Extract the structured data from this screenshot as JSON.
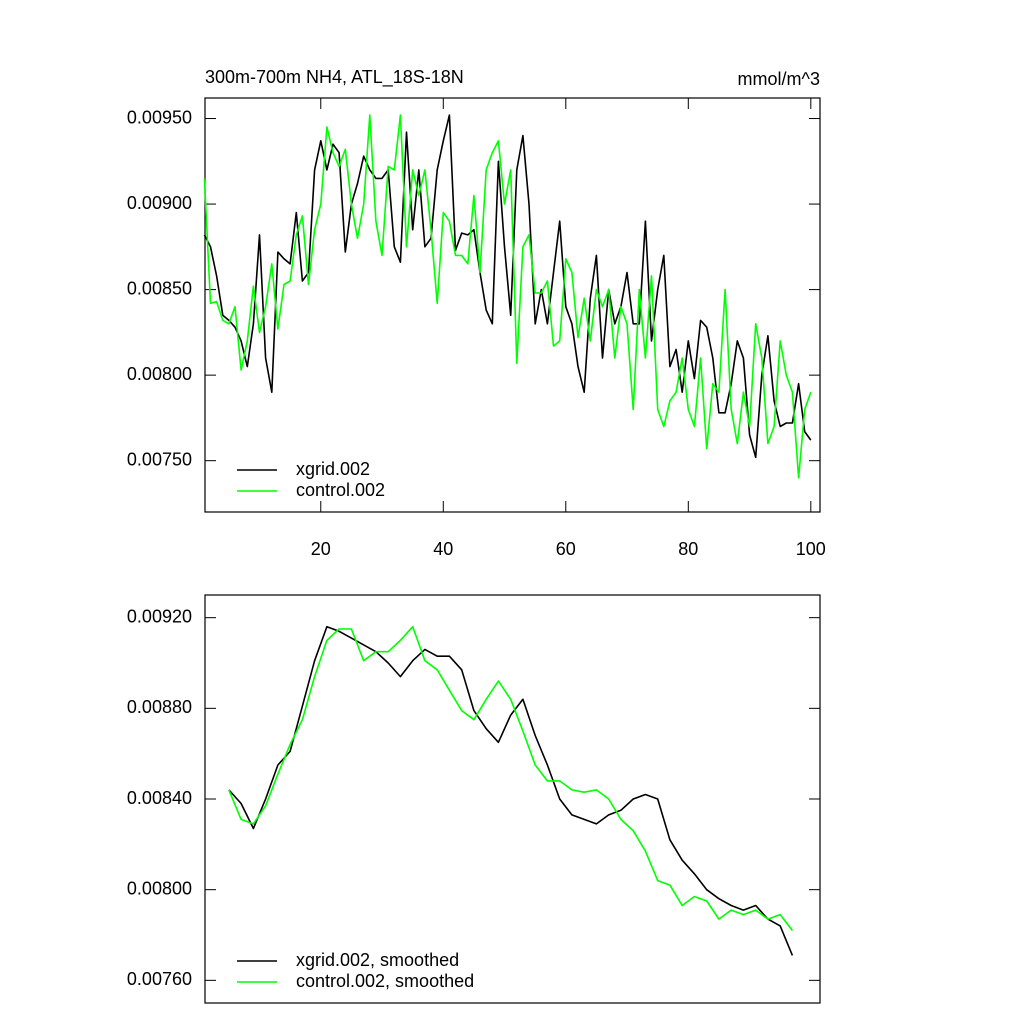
{
  "chart_data": [
    {
      "type": "line",
      "title": "300m-700m NH4, ATL_18S-18N",
      "units": "mmol/m^3",
      "x": [
        1,
        2,
        3,
        4,
        5,
        6,
        7,
        8,
        9,
        10,
        11,
        12,
        13,
        14,
        15,
        16,
        17,
        18,
        19,
        20,
        21,
        22,
        23,
        24,
        25,
        26,
        27,
        28,
        29,
        30,
        31,
        32,
        33,
        34,
        35,
        36,
        37,
        38,
        39,
        40,
        41,
        42,
        43,
        44,
        45,
        46,
        47,
        48,
        49,
        50,
        51,
        52,
        53,
        54,
        55,
        56,
        57,
        58,
        59,
        60,
        61,
        62,
        63,
        64,
        65,
        66,
        67,
        68,
        69,
        70,
        71,
        72,
        73,
        74,
        75,
        76,
        77,
        78,
        79,
        80,
        81,
        82,
        83,
        84,
        85,
        86,
        87,
        88,
        89,
        90,
        91,
        92,
        93,
        94,
        95,
        96,
        97,
        98,
        99,
        100
      ],
      "series": [
        {
          "name": "xgrid.002",
          "color": "#000000",
          "values": [
            0.00882,
            0.00875,
            0.00858,
            0.00835,
            0.00832,
            0.00828,
            0.0082,
            0.00805,
            0.0083,
            0.00882,
            0.0081,
            0.0079,
            0.00872,
            0.00868,
            0.00865,
            0.00895,
            0.00855,
            0.0086,
            0.0092,
            0.00937,
            0.0092,
            0.00935,
            0.0093,
            0.00872,
            0.009,
            0.00912,
            0.00928,
            0.0092,
            0.00915,
            0.00915,
            0.0092,
            0.00875,
            0.00866,
            0.00942,
            0.00885,
            0.0092,
            0.00875,
            0.0088,
            0.0092,
            0.00937,
            0.00952,
            0.00873,
            0.00883,
            0.00882,
            0.00885,
            0.0086,
            0.00838,
            0.0083,
            0.00925,
            0.00875,
            0.00835,
            0.0092,
            0.0094,
            0.009,
            0.0083,
            0.0085,
            0.0083,
            0.0086,
            0.0089,
            0.0084,
            0.0083,
            0.00805,
            0.0079,
            0.00845,
            0.0087,
            0.0081,
            0.0085,
            0.0083,
            0.0084,
            0.0086,
            0.0083,
            0.0083,
            0.0089,
            0.0082,
            0.0085,
            0.0087,
            0.00805,
            0.00815,
            0.0079,
            0.0082,
            0.00798,
            0.00832,
            0.00828,
            0.0081,
            0.00778,
            0.00778,
            0.00795,
            0.0082,
            0.0081,
            0.00765,
            0.00752,
            0.008,
            0.00823,
            0.00785,
            0.0077,
            0.00772,
            0.00772,
            0.00795,
            0.00767,
            0.00762
          ]
        },
        {
          "name": "control.002",
          "color": "#00ff00",
          "values": [
            0.00915,
            0.00842,
            0.00843,
            0.00832,
            0.0083,
            0.0084,
            0.00803,
            0.0082,
            0.00852,
            0.00825,
            0.0084,
            0.00865,
            0.00827,
            0.00853,
            0.00855,
            0.00882,
            0.00893,
            0.00853,
            0.00885,
            0.009,
            0.00945,
            0.0093,
            0.00922,
            0.00932,
            0.009,
            0.0088,
            0.009,
            0.00952,
            0.0089,
            0.0087,
            0.00922,
            0.0092,
            0.00952,
            0.00875,
            0.0092,
            0.00905,
            0.0092,
            0.00885,
            0.00842,
            0.00895,
            0.0089,
            0.0087,
            0.0087,
            0.00865,
            0.00905,
            0.0086,
            0.0092,
            0.0093,
            0.00937,
            0.009,
            0.0092,
            0.00807,
            0.00875,
            0.00882,
            0.00848,
            0.00848,
            0.00855,
            0.00817,
            0.0082,
            0.00868,
            0.0086,
            0.00822,
            0.00845,
            0.0082,
            0.0085,
            0.0084,
            0.0085,
            0.0081,
            0.0084,
            0.0083,
            0.0078,
            0.0085,
            0.0081,
            0.00858,
            0.0078,
            0.0077,
            0.00785,
            0.0079,
            0.0081,
            0.0078,
            0.0077,
            0.0081,
            0.00757,
            0.00795,
            0.0079,
            0.0085,
            0.0078,
            0.0076,
            0.0079,
            0.0077,
            0.0083,
            0.0081,
            0.0076,
            0.0077,
            0.0082,
            0.008,
            0.0079,
            0.0074,
            0.0078,
            0.0079
          ]
        }
      ],
      "xlim": [
        1.1,
        101.5
      ],
      "xticks": [
        20,
        40,
        60,
        80,
        100
      ],
      "ylim": [
        0.0072,
        0.00962
      ],
      "yticks": [
        {
          "value": 0.0075,
          "label": "0.00750"
        },
        {
          "value": 0.008,
          "label": "0.00800"
        },
        {
          "value": 0.0085,
          "label": "0.00850"
        },
        {
          "value": 0.009,
          "label": "0.00900"
        },
        {
          "value": 0.0095,
          "label": "0.00950"
        }
      ],
      "legend": "lower left"
    },
    {
      "type": "line",
      "x": [
        5,
        7,
        9,
        11,
        13,
        15,
        17,
        19,
        21,
        23,
        25,
        27,
        29,
        31,
        33,
        35,
        37,
        39,
        41,
        43,
        45,
        47,
        49,
        51,
        53,
        55,
        57,
        59,
        61,
        63,
        65,
        67,
        69,
        71,
        73,
        75,
        77,
        79,
        81,
        83,
        85,
        87,
        89,
        91,
        93,
        95,
        97
      ],
      "series": [
        {
          "name": "xgrid.002, smoothed",
          "color": "#000000",
          "values": [
            0.00844,
            0.00838,
            0.00827,
            0.0084,
            0.00855,
            0.00861,
            0.00881,
            0.00901,
            0.00916,
            0.00914,
            0.00911,
            0.00908,
            0.00905,
            0.009,
            0.00894,
            0.00901,
            0.00906,
            0.00903,
            0.00903,
            0.00897,
            0.00879,
            0.00871,
            0.00865,
            0.00877,
            0.00884,
            0.00868,
            0.00855,
            0.0084,
            0.00833,
            0.00831,
            0.00829,
            0.00833,
            0.00835,
            0.0084,
            0.00842,
            0.0084,
            0.00822,
            0.00813,
            0.00807,
            0.008,
            0.00796,
            0.00793,
            0.00791,
            0.00793,
            0.00787,
            0.00784,
            0.00771
          ]
        },
        {
          "name": "control.002, smoothed",
          "color": "#00ff00",
          "values": [
            0.00844,
            0.00831,
            0.00829,
            0.00837,
            0.00851,
            0.00864,
            0.00875,
            0.00894,
            0.0091,
            0.00915,
            0.00915,
            0.00901,
            0.00905,
            0.00905,
            0.0091,
            0.00916,
            0.00901,
            0.00897,
            0.00888,
            0.00879,
            0.00875,
            0.00884,
            0.00892,
            0.00884,
            0.0087,
            0.00855,
            0.00848,
            0.00848,
            0.00844,
            0.00843,
            0.00844,
            0.0084,
            0.00831,
            0.00826,
            0.00817,
            0.00804,
            0.00802,
            0.00793,
            0.00797,
            0.00795,
            0.00787,
            0.00791,
            0.00789,
            0.00791,
            0.00787,
            0.00789,
            0.00782
          ]
        }
      ],
      "xlim": [
        1.1,
        101.5
      ],
      "ylim": [
        0.0075,
        0.0093
      ],
      "yticks": [
        {
          "value": 0.0076,
          "label": "0.00760"
        },
        {
          "value": 0.008,
          "label": "0.00800"
        },
        {
          "value": 0.0084,
          "label": "0.00840"
        },
        {
          "value": 0.0088,
          "label": "0.00880"
        },
        {
          "value": 0.0092,
          "label": "0.00920"
        }
      ],
      "legend": "lower left"
    }
  ]
}
